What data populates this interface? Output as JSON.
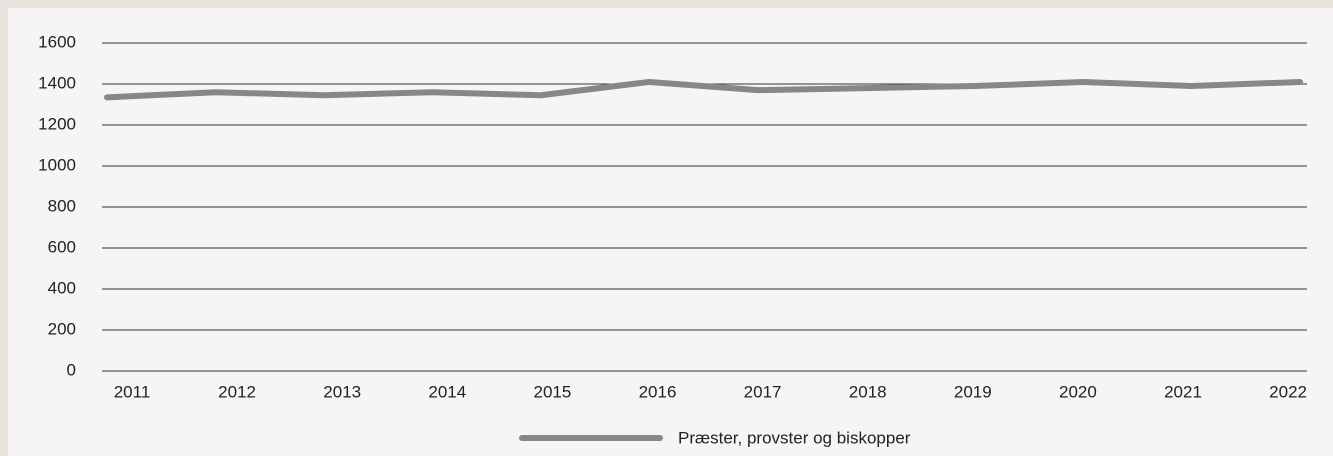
{
  "chart_data": {
    "type": "line",
    "categories": [
      "2011",
      "2012",
      "2013",
      "2014",
      "2015",
      "2016",
      "2017",
      "2018",
      "2019",
      "2020",
      "2021",
      "2022"
    ],
    "series": [
      {
        "name": "Præster, provster og biskopper",
        "color": "#878787",
        "values": [
          1335,
          1360,
          1345,
          1360,
          1345,
          1410,
          1370,
          1380,
          1390,
          1410,
          1390,
          1410
        ]
      }
    ],
    "ylim": [
      0,
      1600
    ],
    "yticks": [
      0,
      200,
      400,
      600,
      800,
      1000,
      1200,
      1400,
      1600
    ],
    "grid": true
  }
}
